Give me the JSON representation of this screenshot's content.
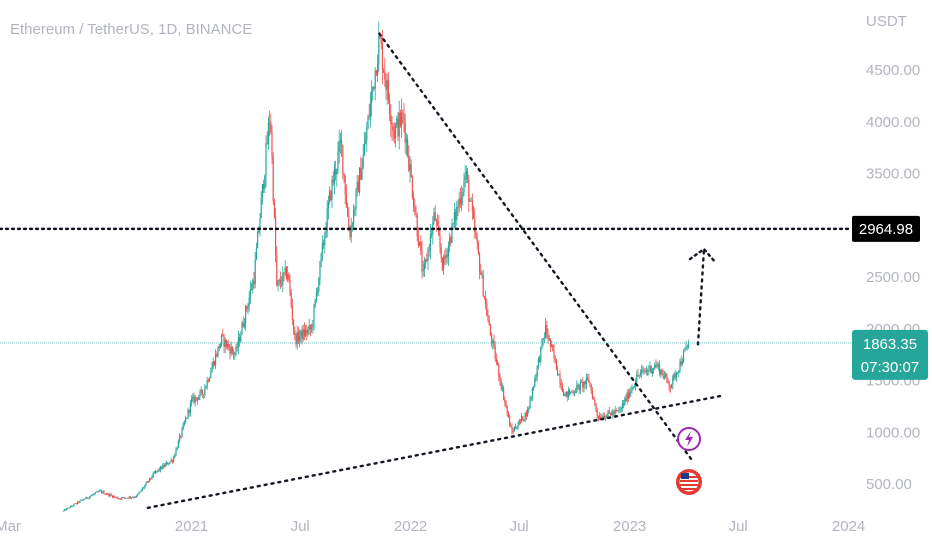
{
  "header": {
    "symbol_title": "Ethereum / TetherUS, 1D, BINANCE"
  },
  "price_axis": {
    "currency": "USDT",
    "ticks": [
      "4500.00",
      "4000.00",
      "3500.00",
      "3000.00",
      "2500.00",
      "2000.00",
      "1500.00",
      "1000.00",
      "500.00"
    ],
    "tick_values": [
      4500,
      4000,
      3500,
      3000,
      2500,
      2000,
      1500,
      1000,
      500
    ]
  },
  "time_axis": {
    "ticks": [
      "Mar",
      "2021",
      "Jul",
      "2022",
      "Jul",
      "2023",
      "Jul",
      "2024"
    ],
    "tick_dates": [
      "2020-03-01",
      "2021-01-01",
      "2021-07-01",
      "2022-01-01",
      "2022-07-01",
      "2023-01-01",
      "2023-07-01",
      "2024-01-01"
    ]
  },
  "tags": {
    "target_price": "2964.98",
    "last_price": "1863.35",
    "countdown": "07:30:07"
  },
  "colors": {
    "up": "#26a69a",
    "down": "#ef5350",
    "last_price_tag": "#26a69a",
    "target_tag": "#000000",
    "lightning_badge": "#9c27b0",
    "flag_badge": "#e53935"
  },
  "icons": {
    "badge_1": "lightning-icon",
    "badge_2": "us-flag-icon"
  },
  "chart_data": {
    "type": "candlestick",
    "title": "Ethereum / TetherUS, 1D, BINANCE",
    "ylabel": "USDT",
    "ylim": [
      270,
      4900
    ],
    "xlim": [
      "2020-03-01",
      "2024-03-15"
    ],
    "grid": false,
    "series": [
      {
        "x": [
          "2020-06-01",
          "2020-07-01",
          "2020-08-01",
          "2020-09-01",
          "2020-10-01",
          "2020-11-01",
          "2020-12-01",
          "2021-01-01",
          "2021-01-20",
          "2021-02-20",
          "2021-03-15",
          "2021-04-15",
          "2021-05-12",
          "2021-05-23",
          "2021-06-10",
          "2021-06-22",
          "2021-07-20",
          "2021-08-20",
          "2021-09-07",
          "2021-09-21",
          "2021-10-15",
          "2021-11-10",
          "2021-12-04",
          "2021-12-20",
          "2022-01-22",
          "2022-02-10",
          "2022-02-24",
          "2022-04-03",
          "2022-05-12",
          "2022-06-18",
          "2022-07-15",
          "2022-08-14",
          "2022-09-15",
          "2022-10-25",
          "2022-11-09",
          "2022-12-15",
          "2023-01-15",
          "2023-02-15",
          "2023-03-10",
          "2023-04-10"
        ],
        "y": [
          240,
          340,
          430,
          360,
          380,
          610,
          740,
          1300,
          1380,
          1900,
          1750,
          2500,
          4100,
          2400,
          2550,
          1900,
          2000,
          3300,
          3800,
          2900,
          3700,
          4800,
          3900,
          4050,
          2500,
          3100,
          2600,
          3500,
          2000,
          1000,
          1200,
          2000,
          1350,
          1500,
          1150,
          1200,
          1550,
          1650,
          1450,
          1863.35
        ]
      }
    ],
    "annotations": [
      {
        "type": "horizontal_line",
        "y": 2964.98,
        "style": "dotted",
        "label": "2964.98"
      },
      {
        "type": "trend_line",
        "style": "dotted",
        "from": [
          "2020-10-20",
          270
        ],
        "to": [
          "2023-06-01",
          1350
        ]
      },
      {
        "type": "trend_line",
        "style": "dotted",
        "from": [
          "2021-11-10",
          4850
        ],
        "to": [
          "2023-04-15",
          730
        ]
      },
      {
        "type": "projection_path",
        "style": "dotted",
        "points": [
          [
            "2023-04-25",
            1850
          ],
          [
            "2023-05-05",
            2770
          ]
        ]
      },
      {
        "type": "horizontal_line",
        "y": 1863.35,
        "style": "thin",
        "label": "1863.35"
      }
    ]
  }
}
